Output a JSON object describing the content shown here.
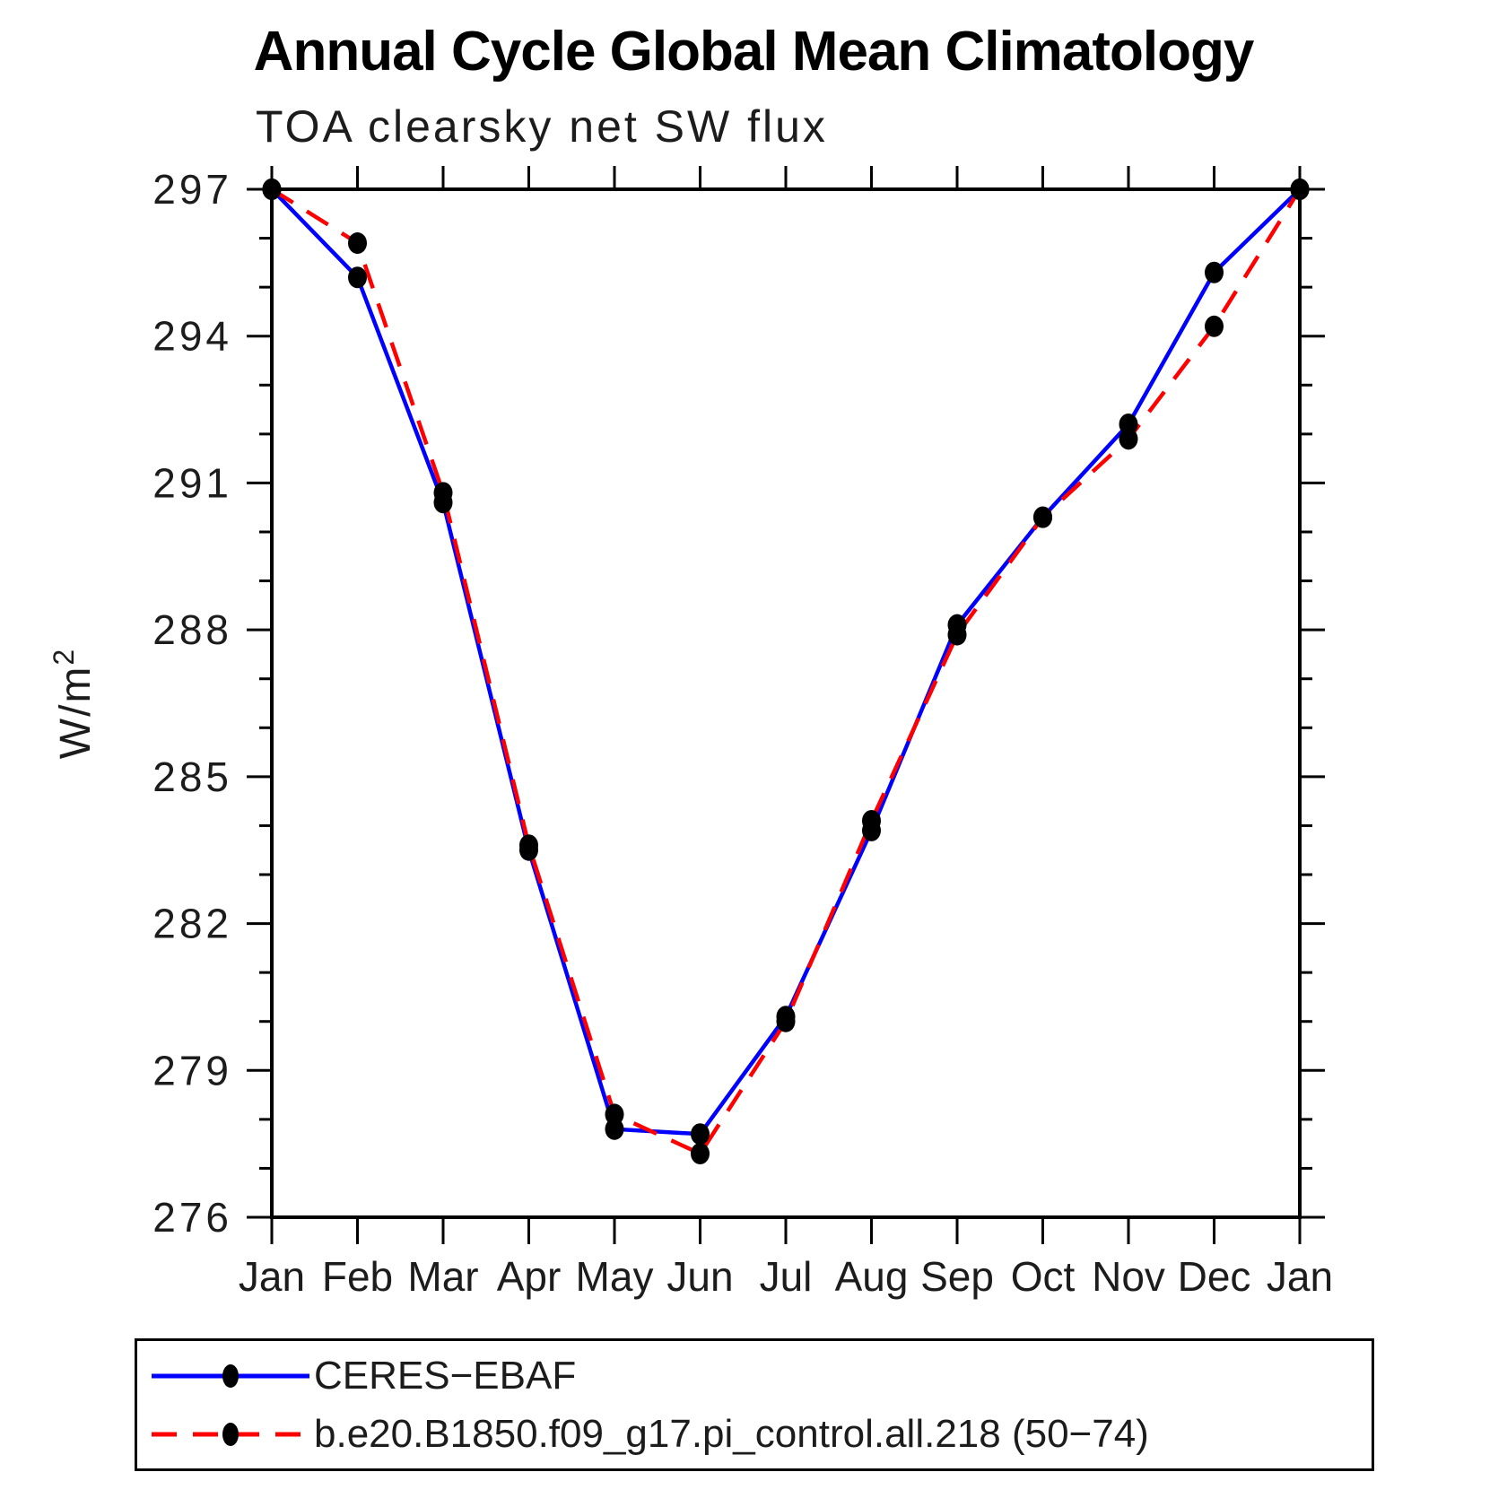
{
  "chart_data": {
    "type": "line",
    "title": "Annual Cycle Global Mean Climatology",
    "subtitle": "TOA clearsky net SW flux",
    "ylabel": "W/m²",
    "xlabel": "",
    "x_categories": [
      "Jan",
      "Feb",
      "Mar",
      "Apr",
      "May",
      "Jun",
      "Jul",
      "Aug",
      "Sep",
      "Oct",
      "Nov",
      "Dec",
      "Jan"
    ],
    "ylim": [
      276,
      297
    ],
    "y_major_ticks": [
      276,
      279,
      282,
      285,
      288,
      291,
      294,
      297
    ],
    "y_minor_step": 1,
    "grid": false,
    "legend_position": "bottom",
    "marker_color": "#000000",
    "axis_color": "#000000",
    "series": [
      {
        "name": "CERES−EBAF",
        "color": "#0000ff",
        "style": "solid",
        "marker": "filled-black-dot",
        "values": [
          297.0,
          295.2,
          290.6,
          283.5,
          277.8,
          277.7,
          280.1,
          283.9,
          288.1,
          290.3,
          292.2,
          295.3,
          297.0
        ]
      },
      {
        "name": "b.e20.B1850.f09_g17.pi_control.all.218 (50−74)",
        "color": "#ff0000",
        "style": "dashed",
        "marker": "filled-black-dot",
        "values": [
          297.0,
          295.9,
          290.8,
          283.6,
          278.1,
          277.3,
          280.0,
          284.1,
          287.9,
          290.3,
          291.9,
          294.2,
          297.0
        ]
      }
    ]
  }
}
